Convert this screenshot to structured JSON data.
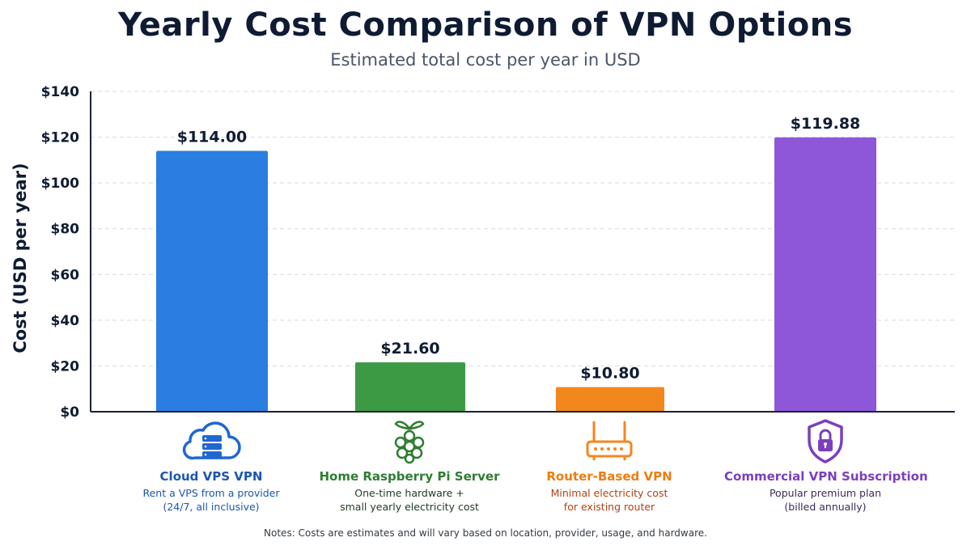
{
  "chart_data": {
    "type": "bar",
    "title": "Yearly Cost Comparison of VPN Options",
    "subtitle": "Estimated total cost per year in USD",
    "ylabel": "Cost (USD per year)",
    "xlabel": "",
    "ylim": [
      0,
      140
    ],
    "yticks": [
      "$0",
      "$20",
      "$40",
      "$60",
      "$80",
      "$100",
      "$120",
      "$140"
    ],
    "ytick_values": [
      0,
      20,
      40,
      60,
      80,
      100,
      120,
      140
    ],
    "grid": true,
    "categories": [
      "Cloud VPS VPN",
      "Home Raspberry Pi Server",
      "Router-Based VPN",
      "Commercial VPN Subscription"
    ],
    "values": [
      114.0,
      21.6,
      10.8,
      119.88
    ],
    "data_labels": [
      "$114.00",
      "$21.60",
      "$10.80",
      "$119.88"
    ],
    "colors": [
      "#2a7de1",
      "#3c9a45",
      "#f2871e",
      "#8e57d9"
    ]
  },
  "categories_info": [
    {
      "name": "Cloud VPS VPN",
      "desc1": "Rent a VPS from a provider",
      "desc2": "(24/7, all inclusive)",
      "icon": "cloud-server-icon",
      "name_color": "#1b56b0",
      "desc_color": "#1b56b0"
    },
    {
      "name": "Home Raspberry Pi Server",
      "desc1": "One-time hardware +",
      "desc2": "small yearly electricity cost",
      "icon": "raspberry-pi-icon",
      "name_color": "#2e7d32",
      "desc_color": "#1f3a24"
    },
    {
      "name": "Router-Based VPN",
      "desc1": "Minimal electricity cost",
      "desc2": "for existing router",
      "icon": "router-icon",
      "name_color": "#ef7d10",
      "desc_color": "#b5400f"
    },
    {
      "name": "Commercial VPN Subscription",
      "desc1": "Popular premium plan",
      "desc2": "(billed annually)",
      "icon": "shield-lock-icon",
      "name_color": "#7b3fbf",
      "desc_color": "#3b2a55"
    }
  ],
  "footer": {
    "note": "Notes: Costs are estimates and will vary based on location, provider, usage, and hardware."
  }
}
